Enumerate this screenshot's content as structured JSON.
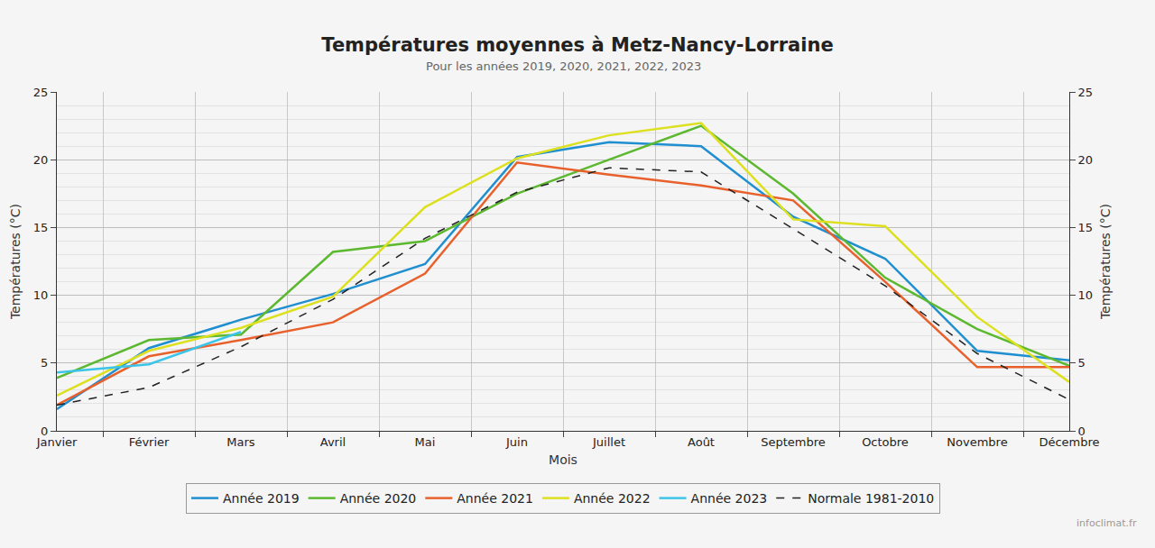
{
  "chart_data": {
    "type": "line",
    "title": "Températures moyennes à Metz-Nancy-Lorraine",
    "subtitle": "Pour les années 2019, 2020, 2021, 2022, 2023",
    "x_label": "Mois",
    "y_label": "Températures (°C)",
    "y2_label": "Températures (°C)",
    "source": "infoclimat.fr",
    "categories": [
      "Janvier",
      "Février",
      "Mars",
      "Avril",
      "Mai",
      "Juin",
      "Juillet",
      "Août",
      "Septembre",
      "Octobre",
      "Novembre",
      "Décembre"
    ],
    "series": [
      {
        "name": "Année 2019",
        "color": "#1f8fd0",
        "line_style": "solid",
        "values": [
          1.6,
          6.1,
          8.2,
          10.1,
          12.3,
          20.2,
          21.3,
          21.0,
          15.8,
          12.7,
          5.9,
          5.2
        ]
      },
      {
        "name": "Année 2020",
        "color": "#5cb82f",
        "line_style": "solid",
        "values": [
          3.9,
          6.7,
          7.1,
          13.2,
          14.0,
          17.5,
          20.0,
          22.5,
          17.5,
          11.3,
          7.5,
          4.8
        ]
      },
      {
        "name": "Année 2021",
        "color": "#e8602c",
        "line_style": "solid",
        "values": [
          1.9,
          5.5,
          6.7,
          8.0,
          11.6,
          19.8,
          18.9,
          18.1,
          17.0,
          11.0,
          4.7,
          4.7
        ]
      },
      {
        "name": "Année 2022",
        "color": "#dde01f",
        "line_style": "solid",
        "values": [
          2.6,
          5.9,
          7.6,
          9.9,
          16.5,
          20.1,
          21.8,
          22.7,
          15.6,
          15.1,
          8.4,
          3.6
        ]
      },
      {
        "name": "Année 2023",
        "color": "#3cc4e8",
        "line_style": "solid",
        "values": [
          4.3,
          4.9,
          7.3,
          null,
          null,
          null,
          null,
          null,
          null,
          null,
          null,
          null
        ]
      },
      {
        "name": "Normale 1981-2010",
        "color": "#222222",
        "line_style": "dashed",
        "values": [
          1.9,
          3.2,
          6.2,
          9.7,
          14.2,
          17.6,
          19.4,
          19.1,
          14.9,
          10.7,
          5.7,
          2.3
        ]
      }
    ],
    "ylim": [
      0,
      25
    ],
    "yticks": [
      0,
      5,
      10,
      15,
      20,
      25
    ],
    "y2lim": [
      0,
      25
    ],
    "y2ticks": [
      0,
      5,
      10,
      15,
      20,
      25
    ],
    "grid": true,
    "legend": "bottom"
  }
}
